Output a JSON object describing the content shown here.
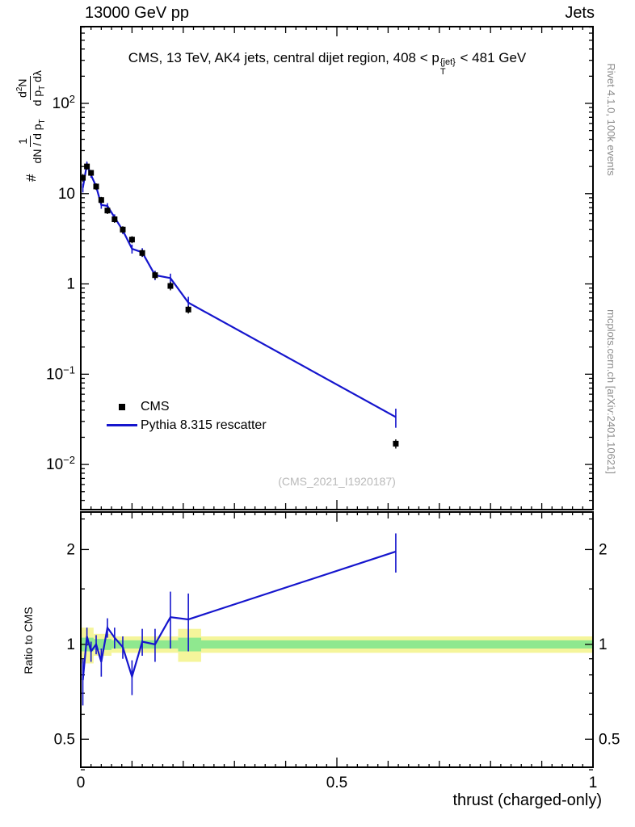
{
  "header": {
    "left": "13000 GeV pp",
    "right": "Jets"
  },
  "title": {
    "pre": "CMS, 13 TeV, AK4 jets, central dijet region, 408 < p",
    "sup": "{jet}",
    "sub": "T",
    "post": " < 481 GeV"
  },
  "ylabel": {
    "prefix": "#",
    "f1num": "1",
    "f1den": "dN / d p",
    "f1den_sub": "T",
    "f2num_pre": "d",
    "f2num_sup": "2",
    "f2num_post": "N",
    "f2den": "d p",
    "f2den_sub": "T",
    "f2den_post": " dλ"
  },
  "ratio_ylabel": "Ratio to CMS",
  "xlabel": "thrust (charged-only)",
  "watermark": "(CMS_2021_I1920187)",
  "side_notes": {
    "top": "Rivet 4.1.0,  100k events",
    "bottom": "mcplots.cern.ch [arXiv:2401.10621]"
  },
  "chart_data": {
    "type": "line",
    "title": "CMS, 13 TeV, AK4 jets, central dijet region, 408 < p_T^{jet} < 481 GeV",
    "xlabel": "thrust (charged-only)",
    "ylabel": "# 1/(dN/dp_T) d^2N/(dp_T dlambda)",
    "ratio_ylabel": "Ratio to CMS",
    "legend_position": "left-middle",
    "grid": false,
    "xlim": [
      0,
      1
    ],
    "main_ylog_range": [
      -2.5,
      2.85
    ],
    "ratio_ylog_range": [
      -0.39,
      0.42
    ],
    "x_major_ticks": [
      0,
      0.5,
      1
    ],
    "x_tick_labels": [
      "0",
      "0.5",
      "1"
    ],
    "main_y_decades": [
      2,
      1,
      0,
      -1,
      -2
    ],
    "ratio_y_ticks": [
      0.5,
      1,
      2
    ],
    "ratio_y_tick_labels": [
      "0.5",
      "1",
      "2"
    ],
    "ratio_y_minor_ticks": [
      0.4,
      0.6,
      0.7,
      0.8,
      0.9,
      1.5,
      2.5
    ],
    "colors": {
      "cms": "#000000",
      "pythia": "#1515cd",
      "band_yellow": "#f5f59b",
      "band_green": "#8fe88f"
    },
    "series": [
      {
        "name": "CMS",
        "type": "scatter-square",
        "color": "#000000",
        "x": [
          0.004,
          0.012,
          0.02,
          0.03,
          0.04,
          0.052,
          0.066,
          0.082,
          0.1,
          0.12,
          0.145,
          0.175,
          0.21,
          0.615
        ],
        "y": [
          15,
          20,
          17,
          12,
          8.5,
          6.5,
          5.2,
          4.0,
          3.1,
          2.2,
          1.25,
          0.95,
          0.52,
          0.017
        ],
        "yerr": [
          1.5,
          1.6,
          1.3,
          1.0,
          0.7,
          0.55,
          0.45,
          0.35,
          0.28,
          0.2,
          0.12,
          0.1,
          0.05,
          0.002
        ]
      },
      {
        "name": "Pythia 8.315 rescatter",
        "type": "line",
        "color": "#1515cd",
        "x": [
          0.004,
          0.012,
          0.02,
          0.03,
          0.04,
          0.052,
          0.066,
          0.082,
          0.1,
          0.12,
          0.145,
          0.175,
          0.21,
          0.615
        ],
        "y": [
          11.6,
          21.2,
          16.1,
          12.0,
          7.5,
          7.3,
          5.45,
          3.92,
          2.45,
          2.24,
          1.25,
          1.16,
          0.62,
          0.0335
        ],
        "yerr": [
          1.3,
          1.3,
          1.1,
          0.9,
          0.7,
          0.55,
          0.45,
          0.35,
          0.28,
          0.25,
          0.15,
          0.14,
          0.1,
          0.008
        ]
      }
    ],
    "ratio": {
      "x": [
        0.004,
        0.012,
        0.02,
        0.03,
        0.04,
        0.052,
        0.066,
        0.082,
        0.1,
        0.12,
        0.145,
        0.175,
        0.21,
        0.615
      ],
      "y": [
        0.77,
        1.06,
        0.95,
        1.0,
        0.88,
        1.13,
        1.05,
        0.98,
        0.79,
        1.02,
        1.0,
        1.22,
        1.2,
        1.97
      ],
      "yerr": [
        0.13,
        0.07,
        0.07,
        0.07,
        0.09,
        0.08,
        0.08,
        0.08,
        0.1,
        0.1,
        0.12,
        0.25,
        0.25,
        0.28
      ]
    },
    "ratio_bands": [
      {
        "x0": 0.0,
        "x1": 0.025,
        "yellow": 0.13,
        "green": 0.05
      },
      {
        "x0": 0.025,
        "x1": 0.06,
        "yellow": 0.08,
        "green": 0.04
      },
      {
        "x0": 0.06,
        "x1": 0.19,
        "yellow": 0.06,
        "green": 0.03
      },
      {
        "x0": 0.19,
        "x1": 0.235,
        "yellow": 0.12,
        "green": 0.05
      },
      {
        "x0": 0.235,
        "x1": 1.0,
        "yellow": 0.06,
        "green": 0.03
      }
    ]
  }
}
